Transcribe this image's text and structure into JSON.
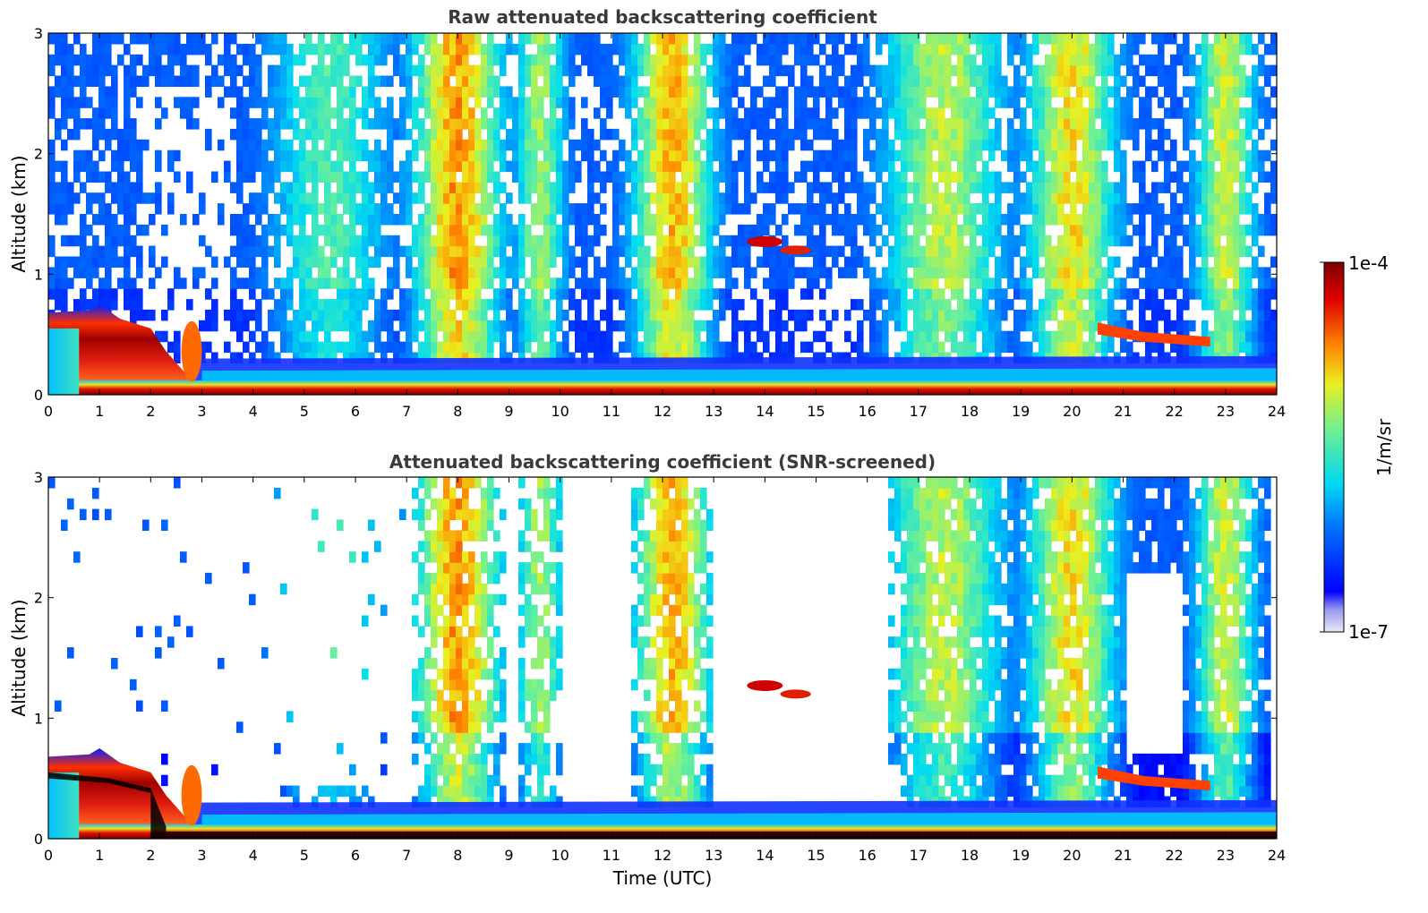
{
  "chart_data": [
    {
      "type": "heatmap",
      "title": "Raw attenuated backscattering coefficient",
      "xlabel": "",
      "ylabel": "Altitude (km)",
      "xlim": [
        0,
        24
      ],
      "ylim": [
        0,
        3
      ],
      "xticks": [
        "0",
        "1",
        "2",
        "3",
        "4",
        "5",
        "6",
        "7",
        "8",
        "9",
        "10",
        "11",
        "12",
        "13",
        "14",
        "15",
        "16",
        "17",
        "18",
        "19",
        "20",
        "21",
        "22",
        "23",
        "24"
      ],
      "yticks": [
        "0",
        "1",
        "2",
        "3"
      ],
      "features": [
        {
          "label": "surface layer",
          "x": [
            0,
            24
          ],
          "y": [
            0,
            0.1
          ],
          "level": "high"
        },
        {
          "label": "boundary layer 00-03 UTC",
          "x": [
            0,
            3
          ],
          "y": [
            0,
            0.65
          ],
          "level": "high"
        },
        {
          "label": "cloud patch 14 UTC",
          "x": [
            13.7,
            15.0
          ],
          "y": [
            1.15,
            1.32
          ],
          "level": "high"
        },
        {
          "label": "layer 20.5-22.7 UTC",
          "x": [
            20.5,
            22.7
          ],
          "y": [
            0.4,
            0.6
          ],
          "level": "high"
        }
      ]
    },
    {
      "type": "heatmap",
      "title": "Attenuated backscattering coefficient (SNR-screened)",
      "xlabel": "Time (UTC)",
      "ylabel": "Altitude (km)",
      "xlim": [
        0,
        24
      ],
      "ylim": [
        0,
        3
      ],
      "xticks": [
        "0",
        "1",
        "2",
        "3",
        "4",
        "5",
        "6",
        "7",
        "8",
        "9",
        "10",
        "11",
        "12",
        "13",
        "14",
        "15",
        "16",
        "17",
        "18",
        "19",
        "20",
        "21",
        "22",
        "23",
        "24"
      ],
      "yticks": [
        "0",
        "1",
        "2",
        "3"
      ],
      "features": [
        {
          "label": "surface layer",
          "x": [
            0,
            24
          ],
          "y": [
            0,
            0.1
          ],
          "level": "high"
        },
        {
          "label": "boundary layer 00-03 UTC",
          "x": [
            0,
            3
          ],
          "y": [
            0,
            0.7
          ],
          "level": "high"
        },
        {
          "label": "cloud patch 14 UTC",
          "x": [
            13.4,
            15.0
          ],
          "y": [
            1.15,
            1.35
          ],
          "level": "high"
        },
        {
          "label": "layer 20.5-22.7 UTC",
          "x": [
            20.5,
            22.7
          ],
          "y": [
            0.4,
            0.6
          ],
          "level": "high"
        }
      ]
    }
  ],
  "colorbar": {
    "max_label": "1e-4",
    "min_label": "1e-7",
    "label": "1/m/sr",
    "colormap": "jet"
  },
  "colors": {
    "low": "#00008f",
    "mid": "#7fff7f",
    "high": "#7f0000",
    "title": "#3a3a3a"
  }
}
